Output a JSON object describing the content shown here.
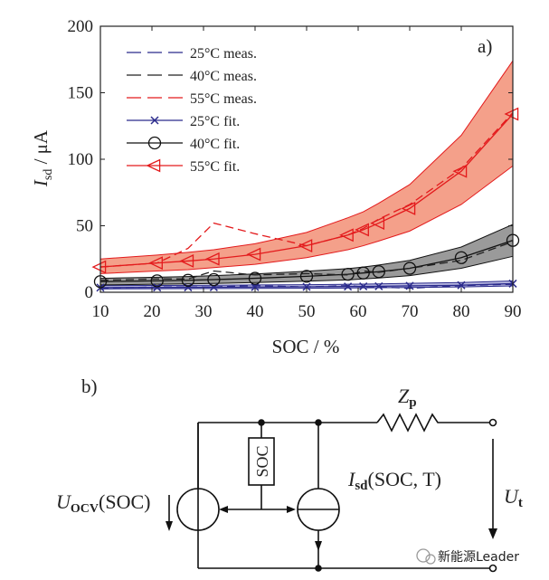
{
  "figure": {
    "panel_a_label": "a)",
    "panel_b_label": "b)",
    "watermark": "新能源Leader"
  },
  "chart_data": {
    "type": "line",
    "xlabel": "SOC / %",
    "ylabel_main": "I",
    "ylabel_sub": "sd",
    "ylabel_unit": " / μA",
    "xlim": [
      10,
      90
    ],
    "ylim": [
      0,
      200
    ],
    "xticks": [
      10,
      20,
      30,
      40,
      50,
      60,
      70,
      80,
      90
    ],
    "yticks": [
      0,
      50,
      100,
      150,
      200
    ],
    "grid": false,
    "legend_position": "top-left",
    "series": [
      {
        "name": "25°C meas.",
        "kind": "meas",
        "color": "#2b2b8c",
        "x": [
          10,
          21,
          27,
          32,
          40,
          50,
          58,
          61,
          64,
          70,
          80,
          90
        ],
        "y": [
          3,
          4,
          4,
          4,
          5,
          4,
          5,
          4,
          4,
          3,
          5,
          6
        ]
      },
      {
        "name": "40°C meas.",
        "kind": "meas",
        "color": "#222222",
        "x": [
          10,
          21,
          27,
          32,
          40,
          50,
          58,
          61,
          64,
          70,
          80,
          90
        ],
        "y": [
          9,
          10,
          10,
          16,
          13,
          14,
          13,
          16,
          15,
          18,
          24,
          38
        ]
      },
      {
        "name": "55°C meas.",
        "kind": "meas",
        "color": "#e31a1c",
        "x": [
          10,
          21,
          27,
          32,
          40,
          50,
          58,
          61,
          64,
          70,
          80,
          90
        ],
        "y": [
          19,
          22,
          33,
          52,
          44,
          35,
          43,
          48,
          55,
          66,
          93,
          135
        ]
      },
      {
        "name": "25°C fit.",
        "kind": "fit",
        "marker": "x",
        "color": "#2b2b8c",
        "x": [
          10,
          21,
          27,
          32,
          40,
          50,
          58,
          61,
          64,
          70,
          80,
          90
        ],
        "y": [
          3.5,
          3.6,
          3.7,
          3.8,
          3.9,
          4.1,
          4.3,
          4.4,
          4.5,
          4.8,
          5.3,
          6.5
        ],
        "band_lower": [
          2.5,
          2.6,
          2.7,
          2.8,
          2.9,
          3.0,
          3.2,
          3.3,
          3.4,
          3.6,
          4.0,
          4.8
        ],
        "band_upper": [
          5.0,
          5.1,
          5.2,
          5.3,
          5.5,
          5.7,
          6.0,
          6.1,
          6.3,
          6.7,
          7.3,
          8.5
        ]
      },
      {
        "name": "40°C fit.",
        "kind": "fit",
        "marker": "o",
        "color": "#111111",
        "band_color": "#9a9a9a",
        "x": [
          10,
          21,
          27,
          32,
          40,
          50,
          58,
          61,
          64,
          70,
          80,
          90
        ],
        "y": [
          8,
          8.6,
          9,
          9.5,
          10.5,
          12,
          13.5,
          14.5,
          15.5,
          18,
          26,
          39
        ],
        "band_lower": [
          5.5,
          6,
          6.3,
          6.6,
          7.3,
          8.3,
          9.3,
          10,
          10.7,
          12.5,
          18,
          27
        ],
        "band_upper": [
          10.5,
          11.3,
          11.8,
          12.5,
          13.8,
          15.8,
          17.8,
          19,
          20.5,
          24,
          34,
          51
        ]
      },
      {
        "name": "55°C fit.",
        "kind": "fit",
        "marker": "triangle-left",
        "color": "#e31a1c",
        "band_color": "#f4a08a",
        "x": [
          10,
          21,
          27,
          32,
          40,
          50,
          58,
          61,
          64,
          70,
          80,
          90
        ],
        "y": [
          19,
          22,
          23.5,
          25,
          28.5,
          35,
          43,
          47,
          52,
          63,
          91,
          134
        ],
        "band_lower": [
          14,
          16,
          17,
          18.5,
          21,
          26,
          32,
          35,
          38.5,
          46,
          66,
          95
        ],
        "band_upper": [
          25,
          28,
          30,
          32,
          36.5,
          45,
          56,
          60.5,
          67,
          81,
          118,
          174
        ]
      }
    ]
  },
  "circuit": {
    "impedance_label": "Z",
    "impedance_sub": "p",
    "voltage_out_label": "U",
    "voltage_out_sub": "t",
    "ocv_label": "U",
    "ocv_sub": "OCV",
    "ocv_arg": "(SOC)",
    "soc_box": "SOC",
    "isd_label": "I",
    "isd_sub": "sd",
    "isd_arg": "(SOC, T)"
  }
}
